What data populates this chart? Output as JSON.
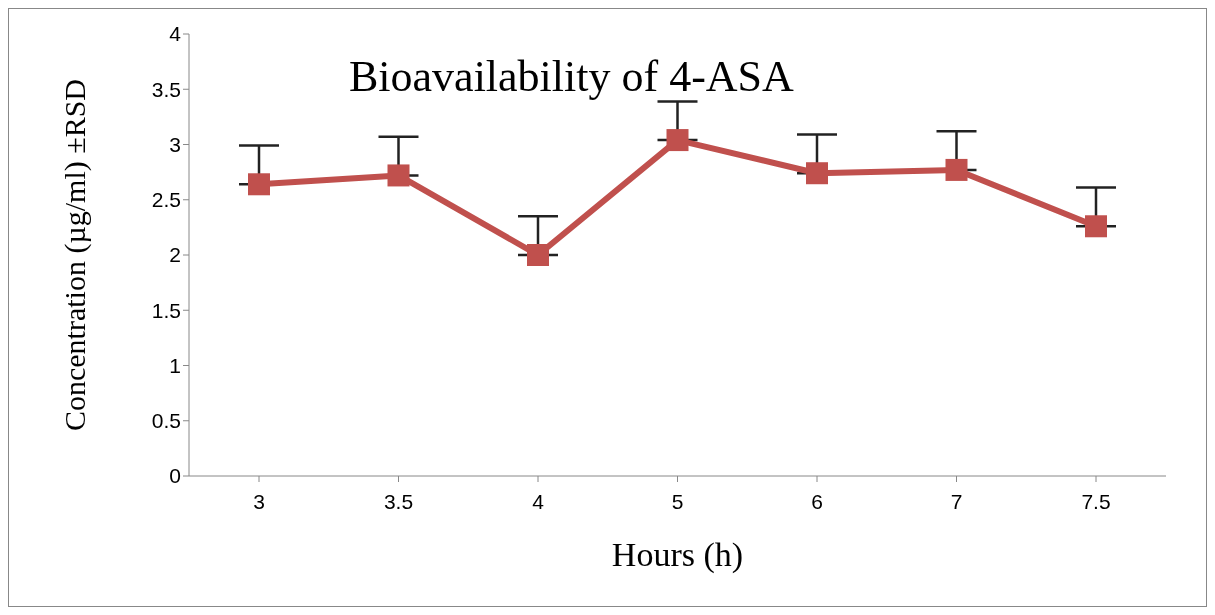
{
  "chart_data": {
    "type": "line",
    "title": "Bioavailability of 4-ASA",
    "xlabel": "Hours (h)",
    "ylabel": "Concentration (µg/ml) ±RSD",
    "categories": [
      "3",
      "3.5",
      "4",
      "5",
      "6",
      "7",
      "7.5"
    ],
    "series": [
      {
        "color": "#c0504d",
        "values": [
          2.64,
          2.72,
          2.0,
          3.04,
          2.74,
          2.77,
          2.26
        ],
        "errors": [
          [
            2.64,
            2.99
          ],
          [
            2.72,
            3.07
          ],
          [
            2.0,
            2.35
          ],
          [
            3.04,
            3.39
          ],
          [
            2.74,
            3.09
          ],
          [
            2.77,
            3.12
          ],
          [
            2.26,
            2.61
          ]
        ]
      }
    ],
    "ylim": [
      0,
      4
    ],
    "yticks": [
      0,
      0.5,
      1,
      1.5,
      2,
      2.5,
      3,
      3.5,
      4
    ],
    "grid": false,
    "legend": false,
    "marker": "square",
    "line_style": "solid"
  }
}
